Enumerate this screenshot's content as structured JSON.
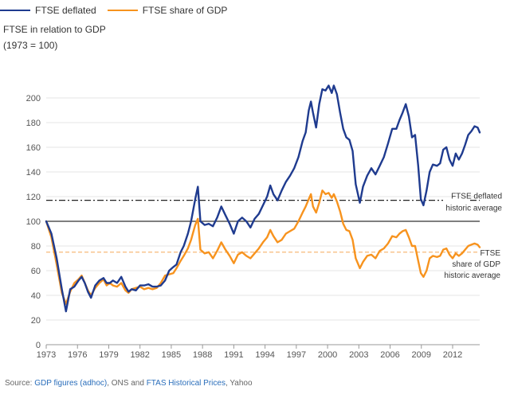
{
  "chart_data": {
    "type": "line",
    "title": "FTSE in relation to GDP",
    "subtitle": "(1973 = 100)",
    "xlabel": "",
    "ylabel": "",
    "xlim": [
      1973,
      2014.6
    ],
    "ylim": [
      0,
      210
    ],
    "x_ticks": [
      1973,
      1976,
      1979,
      1982,
      1985,
      1988,
      1991,
      1994,
      1997,
      2000,
      2003,
      2006,
      2009,
      2012
    ],
    "y_ticks": [
      0,
      20,
      40,
      60,
      80,
      100,
      120,
      140,
      160,
      180,
      200
    ],
    "baseline": 100,
    "series": [
      {
        "name": "FTSE deflated",
        "color": "#1f3b8f",
        "points": [
          [
            1973.0,
            100
          ],
          [
            1973.5,
            90
          ],
          [
            1974.0,
            70
          ],
          [
            1974.5,
            45
          ],
          [
            1974.9,
            27
          ],
          [
            1975.3,
            45
          ],
          [
            1975.7,
            47
          ],
          [
            1976.1,
            52
          ],
          [
            1976.4,
            55
          ],
          [
            1976.7,
            50
          ],
          [
            1977.0,
            43
          ],
          [
            1977.3,
            38
          ],
          [
            1977.7,
            48
          ],
          [
            1978.1,
            52
          ],
          [
            1978.5,
            54
          ],
          [
            1978.8,
            50
          ],
          [
            1979.1,
            50
          ],
          [
            1979.4,
            52
          ],
          [
            1979.8,
            50
          ],
          [
            1980.2,
            55
          ],
          [
            1980.6,
            47
          ],
          [
            1980.9,
            43
          ],
          [
            1981.2,
            45
          ],
          [
            1981.6,
            44
          ],
          [
            1982.0,
            48
          ],
          [
            1982.4,
            48
          ],
          [
            1982.8,
            49
          ],
          [
            1983.2,
            47
          ],
          [
            1983.6,
            47
          ],
          [
            1984.0,
            48
          ],
          [
            1984.4,
            52
          ],
          [
            1984.8,
            60
          ],
          [
            1985.2,
            63
          ],
          [
            1985.5,
            65
          ],
          [
            1985.9,
            75
          ],
          [
            1986.2,
            80
          ],
          [
            1986.6,
            90
          ],
          [
            1986.9,
            100
          ],
          [
            1987.3,
            118
          ],
          [
            1987.55,
            128
          ],
          [
            1987.8,
            100
          ],
          [
            1988.2,
            97
          ],
          [
            1988.6,
            98
          ],
          [
            1989.0,
            96
          ],
          [
            1989.4,
            103
          ],
          [
            1989.8,
            112
          ],
          [
            1990.2,
            105
          ],
          [
            1990.6,
            98
          ],
          [
            1991.0,
            90
          ],
          [
            1991.4,
            100
          ],
          [
            1991.8,
            103
          ],
          [
            1992.2,
            100
          ],
          [
            1992.6,
            95
          ],
          [
            1993.0,
            102
          ],
          [
            1993.4,
            106
          ],
          [
            1993.8,
            113
          ],
          [
            1994.2,
            120
          ],
          [
            1994.5,
            129
          ],
          [
            1994.8,
            122
          ],
          [
            1995.2,
            117
          ],
          [
            1995.6,
            125
          ],
          [
            1996.0,
            132
          ],
          [
            1996.4,
            137
          ],
          [
            1996.8,
            143
          ],
          [
            1997.2,
            152
          ],
          [
            1997.6,
            165
          ],
          [
            1997.9,
            172
          ],
          [
            1998.2,
            190
          ],
          [
            1998.4,
            197
          ],
          [
            1998.6,
            188
          ],
          [
            1998.9,
            176
          ],
          [
            1999.2,
            195
          ],
          [
            1999.5,
            207
          ],
          [
            1999.8,
            206
          ],
          [
            2000.1,
            210
          ],
          [
            2000.4,
            204
          ],
          [
            2000.6,
            210
          ],
          [
            2000.9,
            203
          ],
          [
            2001.2,
            188
          ],
          [
            2001.5,
            175
          ],
          [
            2001.8,
            168
          ],
          [
            2002.1,
            166
          ],
          [
            2002.4,
            157
          ],
          [
            2002.7,
            130
          ],
          [
            2003.1,
            115
          ],
          [
            2003.4,
            128
          ],
          [
            2003.8,
            137
          ],
          [
            2004.2,
            143
          ],
          [
            2004.6,
            138
          ],
          [
            2005.0,
            145
          ],
          [
            2005.4,
            152
          ],
          [
            2005.8,
            163
          ],
          [
            2006.2,
            175
          ],
          [
            2006.6,
            175
          ],
          [
            2006.9,
            182
          ],
          [
            2007.2,
            188
          ],
          [
            2007.5,
            195
          ],
          [
            2007.8,
            185
          ],
          [
            2008.1,
            168
          ],
          [
            2008.4,
            170
          ],
          [
            2008.7,
            145
          ],
          [
            2008.95,
            118
          ],
          [
            2009.2,
            113
          ],
          [
            2009.5,
            125
          ],
          [
            2009.8,
            140
          ],
          [
            2010.1,
            146
          ],
          [
            2010.5,
            145
          ],
          [
            2010.8,
            147
          ],
          [
            2011.1,
            158
          ],
          [
            2011.4,
            160
          ],
          [
            2011.7,
            150
          ],
          [
            2012.0,
            145
          ],
          [
            2012.3,
            155
          ],
          [
            2012.6,
            150
          ],
          [
            2012.9,
            155
          ],
          [
            2013.2,
            162
          ],
          [
            2013.5,
            170
          ],
          [
            2013.8,
            173
          ],
          [
            2014.1,
            177
          ],
          [
            2014.4,
            176
          ],
          [
            2014.6,
            172
          ]
        ]
      },
      {
        "name": "FTSE share of GDP",
        "color": "#f7931e",
        "points": [
          [
            1973.0,
            100
          ],
          [
            1973.5,
            87
          ],
          [
            1974.0,
            65
          ],
          [
            1974.5,
            42
          ],
          [
            1974.9,
            33
          ],
          [
            1975.3,
            43
          ],
          [
            1975.7,
            50
          ],
          [
            1976.1,
            53
          ],
          [
            1976.4,
            56
          ],
          [
            1976.7,
            50
          ],
          [
            1977.0,
            44
          ],
          [
            1977.3,
            40
          ],
          [
            1977.7,
            46
          ],
          [
            1978.1,
            50
          ],
          [
            1978.5,
            53
          ],
          [
            1978.8,
            48
          ],
          [
            1979.1,
            50
          ],
          [
            1979.4,
            48
          ],
          [
            1979.8,
            47
          ],
          [
            1980.2,
            50
          ],
          [
            1980.6,
            44
          ],
          [
            1980.9,
            42
          ],
          [
            1981.2,
            45
          ],
          [
            1981.6,
            46
          ],
          [
            1982.0,
            47
          ],
          [
            1982.4,
            45
          ],
          [
            1982.8,
            46
          ],
          [
            1983.2,
            45
          ],
          [
            1983.6,
            46
          ],
          [
            1984.0,
            50
          ],
          [
            1984.4,
            56
          ],
          [
            1984.8,
            57
          ],
          [
            1985.2,
            58
          ],
          [
            1985.5,
            62
          ],
          [
            1985.9,
            68
          ],
          [
            1986.2,
            72
          ],
          [
            1986.6,
            78
          ],
          [
            1986.9,
            85
          ],
          [
            1987.3,
            97
          ],
          [
            1987.55,
            102
          ],
          [
            1987.8,
            77
          ],
          [
            1988.2,
            74
          ],
          [
            1988.6,
            75
          ],
          [
            1989.0,
            70
          ],
          [
            1989.4,
            76
          ],
          [
            1989.8,
            83
          ],
          [
            1990.2,
            77
          ],
          [
            1990.6,
            72
          ],
          [
            1991.0,
            66
          ],
          [
            1991.4,
            73
          ],
          [
            1991.8,
            75
          ],
          [
            1992.2,
            72
          ],
          [
            1992.6,
            70
          ],
          [
            1993.0,
            74
          ],
          [
            1993.4,
            78
          ],
          [
            1993.8,
            83
          ],
          [
            1994.2,
            87
          ],
          [
            1994.5,
            93
          ],
          [
            1994.8,
            88
          ],
          [
            1995.2,
            83
          ],
          [
            1995.6,
            85
          ],
          [
            1996.0,
            90
          ],
          [
            1996.4,
            92
          ],
          [
            1996.8,
            94
          ],
          [
            1997.2,
            100
          ],
          [
            1997.6,
            107
          ],
          [
            1997.9,
            112
          ],
          [
            1998.2,
            118
          ],
          [
            1998.4,
            122
          ],
          [
            1998.6,
            112
          ],
          [
            1998.9,
            107
          ],
          [
            1999.2,
            115
          ],
          [
            1999.5,
            125
          ],
          [
            1999.8,
            122
          ],
          [
            2000.1,
            123
          ],
          [
            2000.4,
            119
          ],
          [
            2000.6,
            122
          ],
          [
            2000.9,
            116
          ],
          [
            2001.2,
            108
          ],
          [
            2001.5,
            98
          ],
          [
            2001.8,
            93
          ],
          [
            2002.1,
            92
          ],
          [
            2002.4,
            85
          ],
          [
            2002.7,
            70
          ],
          [
            2003.1,
            62
          ],
          [
            2003.4,
            67
          ],
          [
            2003.8,
            72
          ],
          [
            2004.2,
            73
          ],
          [
            2004.6,
            70
          ],
          [
            2005.0,
            76
          ],
          [
            2005.4,
            78
          ],
          [
            2005.8,
            82
          ],
          [
            2006.2,
            88
          ],
          [
            2006.6,
            87
          ],
          [
            2006.9,
            90
          ],
          [
            2007.2,
            92
          ],
          [
            2007.5,
            93
          ],
          [
            2007.8,
            87
          ],
          [
            2008.1,
            80
          ],
          [
            2008.4,
            80
          ],
          [
            2008.7,
            68
          ],
          [
            2008.95,
            58
          ],
          [
            2009.2,
            55
          ],
          [
            2009.5,
            60
          ],
          [
            2009.8,
            70
          ],
          [
            2010.1,
            72
          ],
          [
            2010.5,
            71
          ],
          [
            2010.8,
            72
          ],
          [
            2011.1,
            77
          ],
          [
            2011.4,
            78
          ],
          [
            2011.7,
            73
          ],
          [
            2012.0,
            70
          ],
          [
            2012.3,
            74
          ],
          [
            2012.6,
            72
          ],
          [
            2012.9,
            74
          ],
          [
            2013.2,
            77
          ],
          [
            2013.5,
            80
          ],
          [
            2013.8,
            81
          ],
          [
            2014.1,
            82
          ],
          [
            2014.4,
            81
          ],
          [
            2014.6,
            79
          ]
        ]
      }
    ],
    "reference_lines": [
      {
        "name": "FTSE deflated historic average",
        "value": 117,
        "label_lines": [
          "FTSE deflated",
          "historic average"
        ]
      },
      {
        "name": "FTSE share of GDP historic average",
        "value": 75,
        "label_lines": [
          "FTSE",
          "share of GDP",
          "historic average"
        ]
      }
    ]
  },
  "legend": [
    {
      "label": "FTSE deflated",
      "color": "#1f3b8f"
    },
    {
      "label": "FTSE share of GDP",
      "color": "#f7931e"
    }
  ],
  "source": {
    "prefix": "Source: ",
    "link1": "GDP figures (adhoc)",
    "middle": ", ONS and ",
    "link2": "FTAS Historical Prices",
    "suffix": ", Yahoo"
  }
}
